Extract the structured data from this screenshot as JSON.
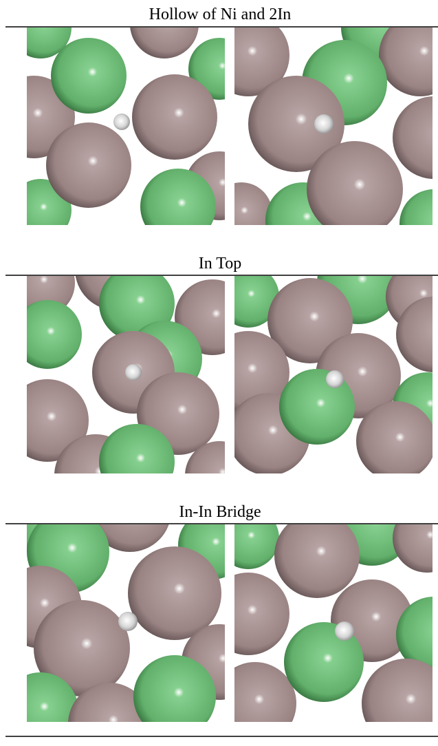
{
  "sections": [
    {
      "title": "Hollow of Ni and 2In"
    },
    {
      "title": "In Top"
    },
    {
      "title": "In-In Bridge"
    }
  ]
}
